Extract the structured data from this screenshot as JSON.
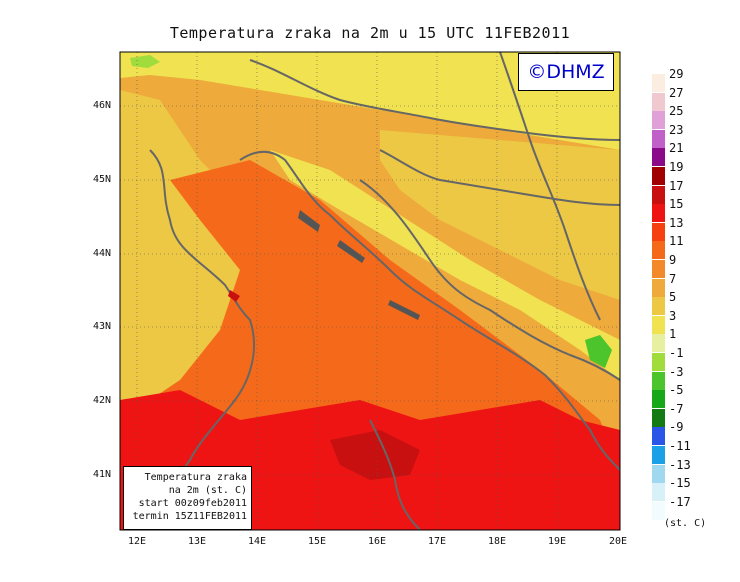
{
  "title": "Temperatura zraka na 2m u 15 UTC 11FEB2011",
  "brand": "©DHMZ",
  "info": {
    "line1": "Temperatura zraka",
    "line2": "na 2m (st. C)",
    "line3": "start 00z09feb2011",
    "line4": "termin 15Z11FEB2011"
  },
  "lon_ticks": [
    "12E",
    "13E",
    "14E",
    "15E",
    "16E",
    "17E",
    "18E",
    "19E",
    "20E"
  ],
  "lat_ticks": [
    "46N",
    "45N",
    "44N",
    "43N",
    "42N",
    "41N"
  ],
  "legend_unit": "(st. C)",
  "legend": [
    {
      "label": "29",
      "color": "#fbeee0"
    },
    {
      "label": "27",
      "color": "#f0c8d0"
    },
    {
      "label": "25",
      "color": "#e0a0d8"
    },
    {
      "label": "23",
      "color": "#c060c8"
    },
    {
      "label": "21",
      "color": "#8a0a8a"
    },
    {
      "label": "19",
      "color": "#a00000"
    },
    {
      "label": "17",
      "color": "#c81010"
    },
    {
      "label": "15",
      "color": "#ee1414"
    },
    {
      "label": "13",
      "color": "#f54010"
    },
    {
      "label": "11",
      "color": "#f56a1a"
    },
    {
      "label": "9",
      "color": "#f28a2a"
    },
    {
      "label": "7",
      "color": "#eeaa3a"
    },
    {
      "label": "5",
      "color": "#ecc845"
    },
    {
      "label": "3",
      "color": "#f0e250"
    },
    {
      "label": "1",
      "color": "#e6f0a0"
    },
    {
      "label": "-1",
      "color": "#a0dc3c"
    },
    {
      "label": "-3",
      "color": "#4cc42c"
    },
    {
      "label": "-5",
      "color": "#16a818"
    },
    {
      "label": "-7",
      "color": "#147a14"
    },
    {
      "label": "-9",
      "color": "#2a55e6"
    },
    {
      "label": "-11",
      "color": "#1aa0e6"
    },
    {
      "label": "-13",
      "color": "#a0d8f0"
    },
    {
      "label": "-15",
      "color": "#d8f0f8"
    },
    {
      "label": "-17",
      "color": "#f2fbfd"
    }
  ]
}
